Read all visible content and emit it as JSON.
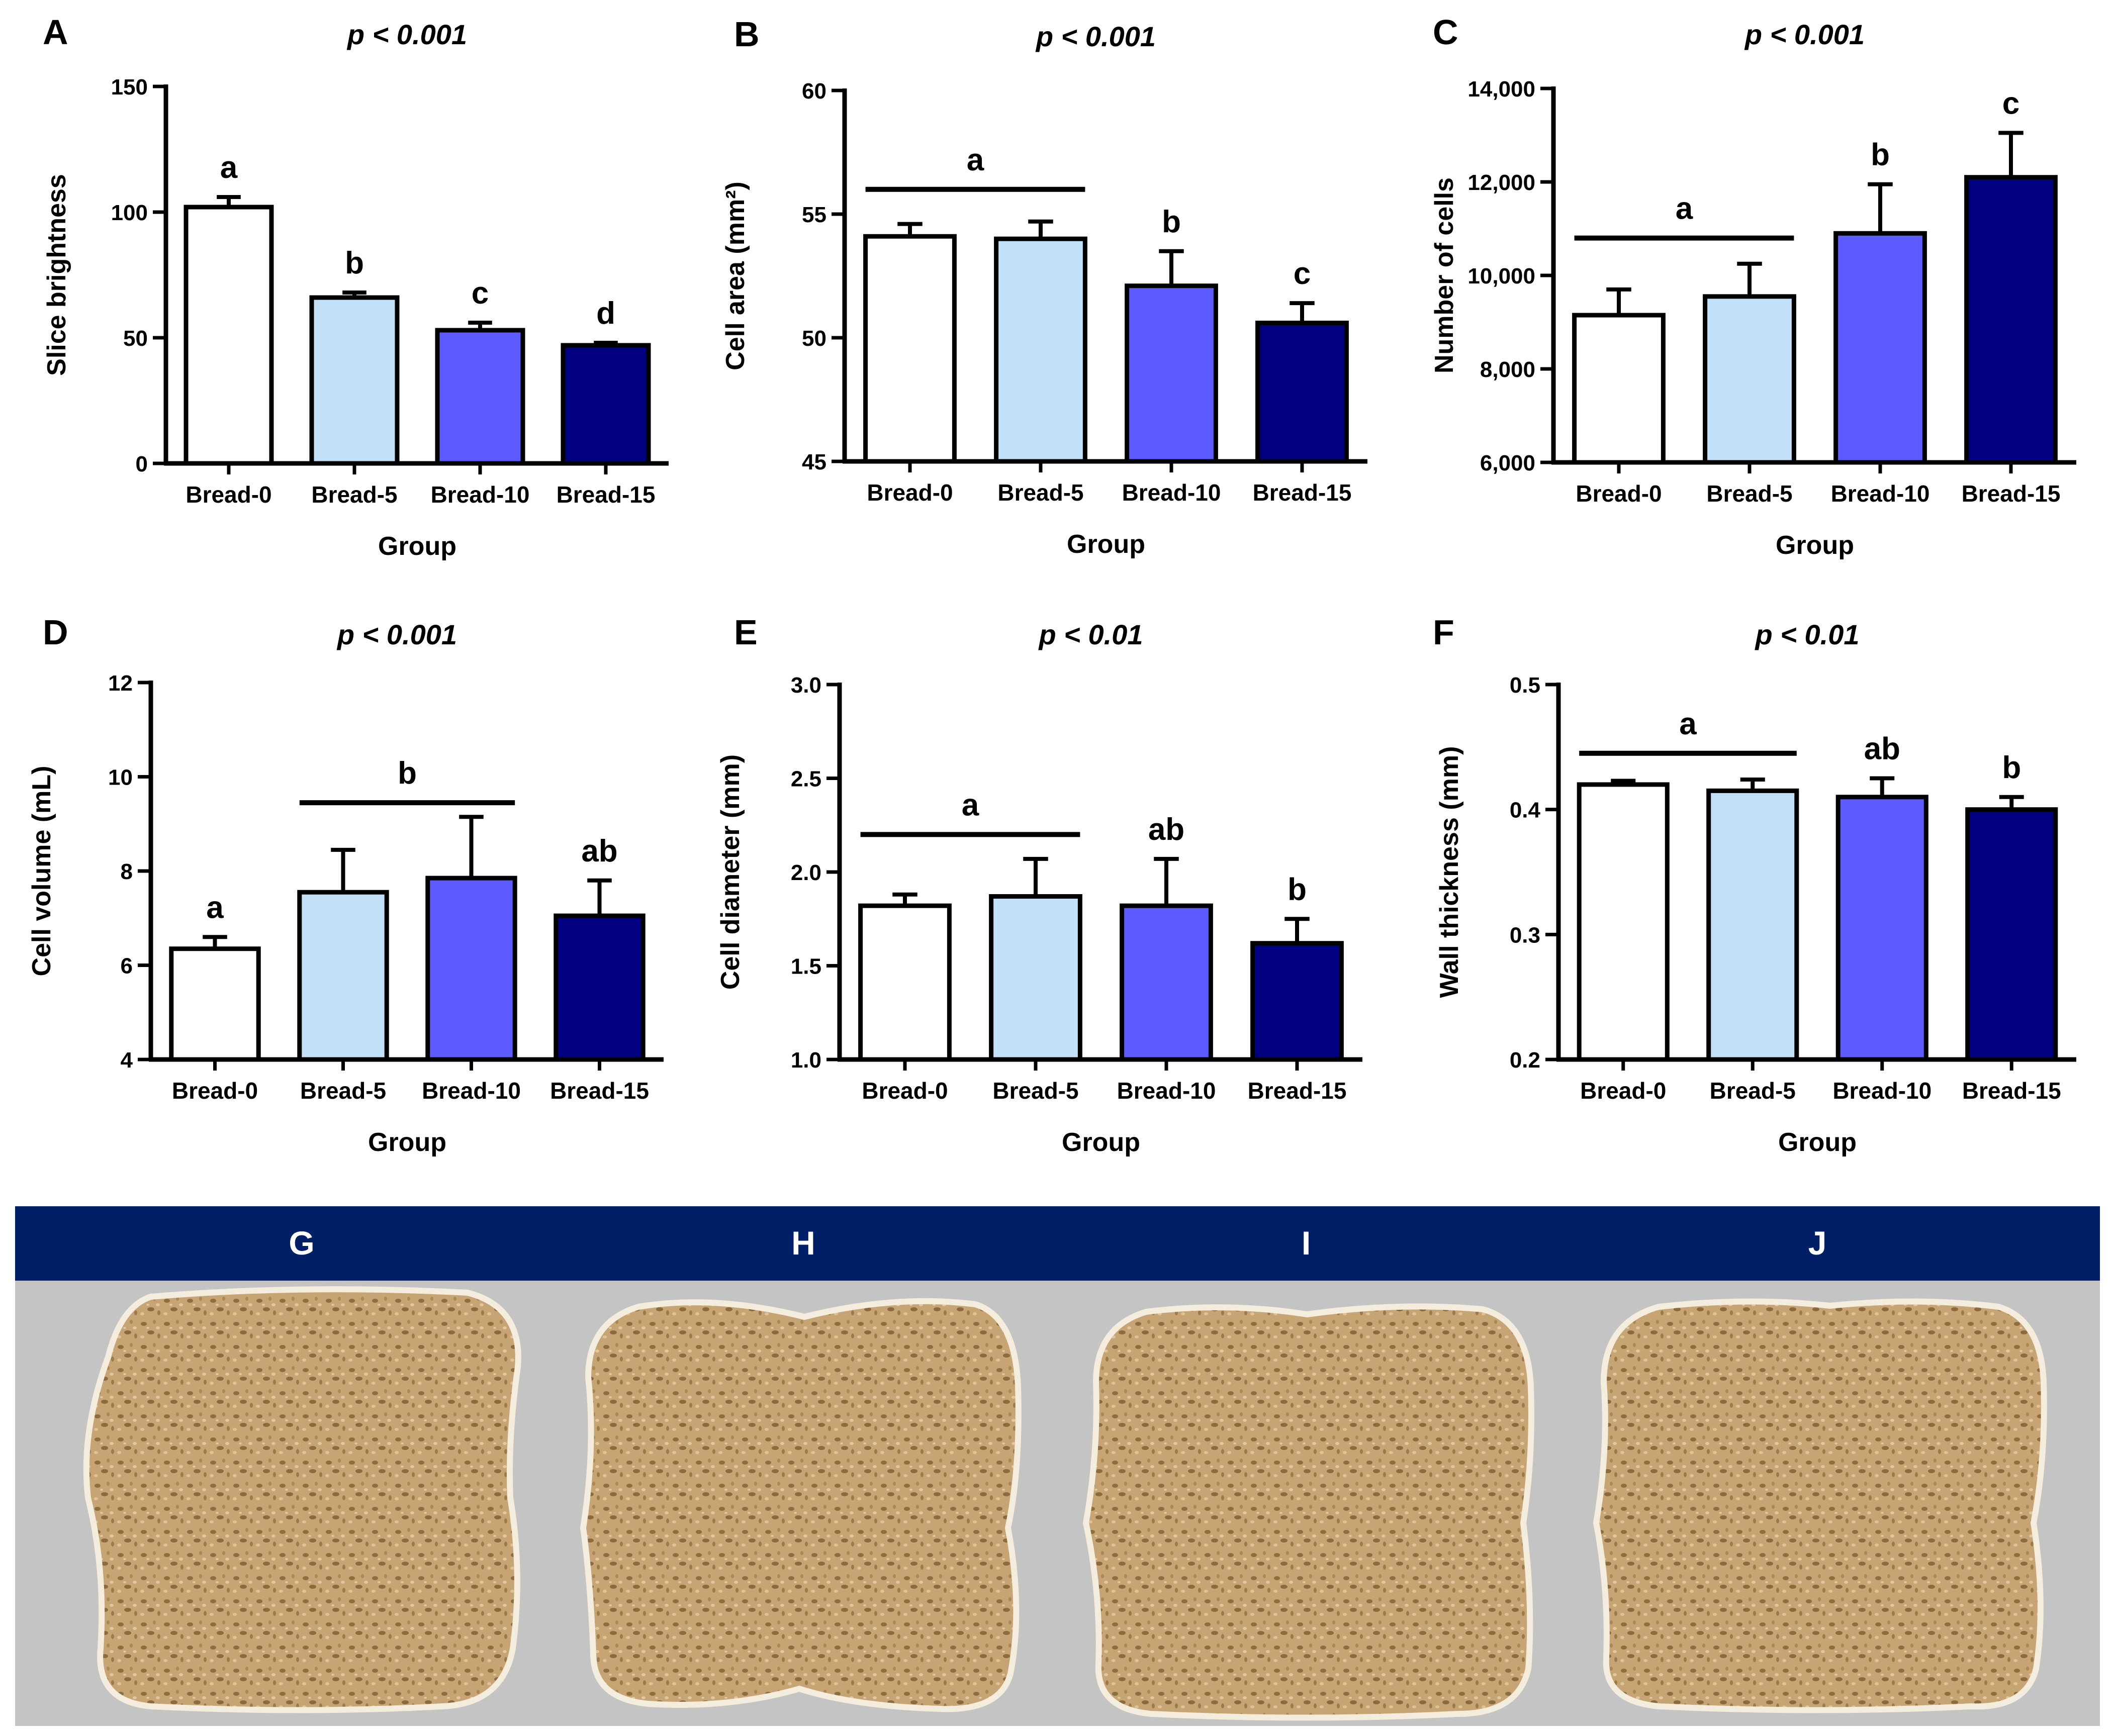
{
  "colors": {
    "bar_fills": [
      "#ffffff",
      "#c2e0f8",
      "#5b5bff",
      "#000080"
    ],
    "bar_stroke": "#000000",
    "banner": "#001f66",
    "photo_background": "#c4c4c4",
    "bread_crumb": "#c7a473"
  },
  "chart_data": [
    {
      "panel": "A",
      "type": "bar",
      "pvalue": "p < 0.001",
      "categories": [
        "Bread-0",
        "Bread-5",
        "Bread-10",
        "Bread-15"
      ],
      "values": [
        102,
        66,
        53,
        47
      ],
      "errors": [
        4,
        2,
        3,
        1
      ],
      "ylabel": "Slice brightness",
      "xlabel": "Group",
      "ylim": [
        0,
        150
      ],
      "yticks": [
        0,
        50,
        100,
        150
      ],
      "ytick_labels": [
        "0",
        "50",
        "100",
        "150"
      ],
      "letters": [
        {
          "text": "a",
          "start": 0,
          "end": 0,
          "line": false
        },
        {
          "text": "b",
          "start": 1,
          "end": 1,
          "line": false
        },
        {
          "text": "c",
          "start": 2,
          "end": 2,
          "line": false
        },
        {
          "text": "d",
          "start": 3,
          "end": 3,
          "line": false
        }
      ]
    },
    {
      "panel": "B",
      "type": "bar",
      "pvalue": "p < 0.001",
      "categories": [
        "Bread-0",
        "Bread-5",
        "Bread-10",
        "Bread-15"
      ],
      "values": [
        54.1,
        54.0,
        52.1,
        50.6
      ],
      "errors": [
        0.5,
        0.7,
        1.4,
        0.8
      ],
      "ylabel": "Cell area (mm²)",
      "xlabel": "Group",
      "ylim": [
        45,
        60
      ],
      "yticks": [
        45,
        50,
        55,
        60
      ],
      "ytick_labels": [
        "45",
        "50",
        "55",
        "60"
      ],
      "letters": [
        {
          "text": "a",
          "start": 0,
          "end": 1,
          "line": true,
          "level": 56.0
        },
        {
          "text": "b",
          "start": 2,
          "end": 2,
          "line": false
        },
        {
          "text": "c",
          "start": 3,
          "end": 3,
          "line": false
        }
      ]
    },
    {
      "panel": "C",
      "type": "bar",
      "pvalue": "p < 0.001",
      "categories": [
        "Bread-0",
        "Bread-5",
        "Bread-10",
        "Bread-15"
      ],
      "values": [
        9150,
        9550,
        10900,
        12100
      ],
      "errors": [
        550,
        700,
        1050,
        950
      ],
      "ylabel": "Number of cells",
      "xlabel": "Group",
      "ylim": [
        6000,
        14000
      ],
      "yticks": [
        6000,
        8000,
        10000,
        12000,
        14000
      ],
      "ytick_labels": [
        "6,000",
        "8,000",
        "10,000",
        "12,000",
        "14,000"
      ],
      "letters": [
        {
          "text": "a",
          "start": 0,
          "end": 1,
          "line": true,
          "level": 10800
        },
        {
          "text": "b",
          "start": 2,
          "end": 2,
          "line": false
        },
        {
          "text": "c",
          "start": 3,
          "end": 3,
          "line": false
        }
      ]
    },
    {
      "panel": "D",
      "type": "bar",
      "pvalue": "p < 0.001",
      "categories": [
        "Bread-0",
        "Bread-5",
        "Bread-10",
        "Bread-15"
      ],
      "values": [
        6.35,
        7.55,
        7.85,
        7.05
      ],
      "errors": [
        0.25,
        0.9,
        1.3,
        0.75
      ],
      "ylabel": "Cell volume (mL)",
      "xlabel": "Group",
      "ylim": [
        4,
        12
      ],
      "yticks": [
        4,
        6,
        8,
        10,
        12
      ],
      "ytick_labels": [
        "4",
        "6",
        "8",
        "10",
        "12"
      ],
      "letters": [
        {
          "text": "a",
          "start": 0,
          "end": 0,
          "line": false
        },
        {
          "text": "b",
          "start": 1,
          "end": 2,
          "line": true,
          "level": 9.45
        },
        {
          "text": "ab",
          "start": 3,
          "end": 3,
          "line": false
        }
      ]
    },
    {
      "panel": "E",
      "type": "bar",
      "pvalue": "p < 0.01",
      "categories": [
        "Bread-0",
        "Bread-5",
        "Bread-10",
        "Bread-15"
      ],
      "values": [
        1.82,
        1.87,
        1.82,
        1.62
      ],
      "errors": [
        0.06,
        0.2,
        0.25,
        0.13
      ],
      "ylabel": "Cell diameter (mm)",
      "xlabel": "Group",
      "ylim": [
        1.0,
        3.0
      ],
      "yticks": [
        1.0,
        1.5,
        2.0,
        2.5,
        3.0
      ],
      "ytick_labels": [
        "1.0",
        "1.5",
        "2.0",
        "2.5",
        "3.0"
      ],
      "letters": [
        {
          "text": "a",
          "start": 0,
          "end": 1,
          "line": true,
          "level": 2.2
        },
        {
          "text": "ab",
          "start": 2,
          "end": 2,
          "line": false
        },
        {
          "text": "b",
          "start": 3,
          "end": 3,
          "line": false
        }
      ]
    },
    {
      "panel": "F",
      "type": "bar",
      "pvalue": "p < 0.01",
      "categories": [
        "Bread-0",
        "Bread-5",
        "Bread-10",
        "Bread-15"
      ],
      "values": [
        0.42,
        0.415,
        0.41,
        0.4
      ],
      "errors": [
        0.003,
        0.009,
        0.015,
        0.01
      ],
      "ylabel": "Wall thickness (mm)",
      "xlabel": "Group",
      "ylim": [
        0.2,
        0.5
      ],
      "yticks": [
        0.2,
        0.3,
        0.4,
        0.5
      ],
      "ytick_labels": [
        "0.2",
        "0.3",
        "0.4",
        "0.5"
      ],
      "letters": [
        {
          "text": "a",
          "start": 0,
          "end": 1,
          "line": true,
          "level": 0.445
        },
        {
          "text": "ab",
          "start": 2,
          "end": 2,
          "line": false
        },
        {
          "text": "b",
          "start": 3,
          "end": 3,
          "line": false
        }
      ]
    }
  ],
  "images": {
    "labels": [
      "G",
      "H",
      "I",
      "J"
    ]
  }
}
